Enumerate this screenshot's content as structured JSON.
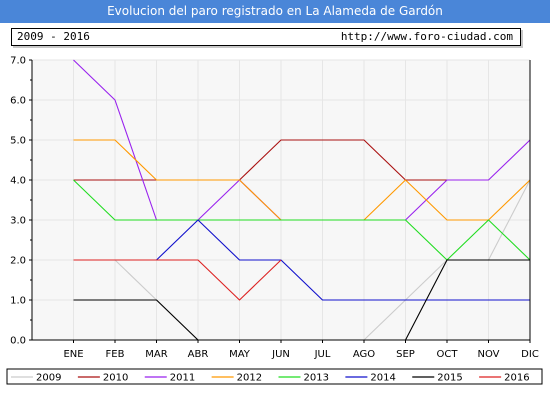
{
  "header": {
    "title": "Evolucion del paro registrado en La Alameda de Gardón"
  },
  "info": {
    "years": "2009 - 2016",
    "url": "http://www.foro-ciudad.com"
  },
  "chart_data": {
    "type": "line",
    "title": "Evolucion del paro registrado en La Alameda de Gardón",
    "categories": [
      "ENE",
      "FEB",
      "MAR",
      "ABR",
      "MAY",
      "JUN",
      "JUL",
      "AGO",
      "SEP",
      "OCT",
      "NOV",
      "DIC"
    ],
    "ylim": [
      0,
      7
    ],
    "yticks": [
      "0.0",
      "1.0",
      "2.0",
      "3.0",
      "4.0",
      "5.0",
      "6.0",
      "7.0"
    ],
    "grid": true,
    "legend_position": "bottom",
    "series": [
      {
        "name": "2009",
        "color": "#cccccc",
        "values": [
          2,
          2,
          1,
          0,
          0,
          0,
          0,
          0,
          1,
          2,
          2,
          4
        ]
      },
      {
        "name": "2010",
        "color": "#aa1111",
        "values": [
          4,
          4,
          4,
          4,
          4,
          5,
          5,
          5,
          4,
          4,
          null,
          null
        ]
      },
      {
        "name": "2011",
        "color": "#9922ee",
        "values": [
          7,
          6,
          3,
          3,
          4,
          3,
          3,
          3,
          3,
          4,
          4,
          5
        ]
      },
      {
        "name": "2012",
        "color": "#ff9900",
        "values": [
          5,
          5,
          4,
          4,
          4,
          3,
          3,
          3,
          4,
          3,
          3,
          4
        ]
      },
      {
        "name": "2013",
        "color": "#22dd22",
        "values": [
          4,
          3,
          3,
          3,
          3,
          3,
          3,
          3,
          3,
          2,
          3,
          2
        ]
      },
      {
        "name": "2014",
        "color": "#1111cc",
        "values": [
          2,
          2,
          2,
          3,
          2,
          2,
          1,
          1,
          1,
          1,
          1,
          1
        ]
      },
      {
        "name": "2015",
        "color": "#000000",
        "values": [
          1,
          1,
          1,
          0,
          null,
          null,
          null,
          null,
          0,
          2,
          2,
          2
        ]
      },
      {
        "name": "2016",
        "color": "#dd2222",
        "values": [
          2,
          2,
          2,
          2,
          1,
          2,
          null,
          null,
          null,
          null,
          null,
          null
        ]
      }
    ],
    "extra_segments_note": ""
  }
}
